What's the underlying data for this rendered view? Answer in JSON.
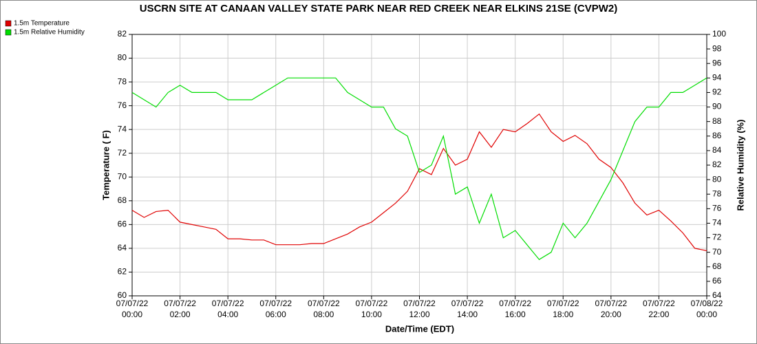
{
  "chart_data": {
    "type": "line",
    "title": "USCRN SITE AT CANAAN VALLEY STATE PARK NEAR RED CREEK NEAR ELKINS 21SE (CVPW2)",
    "x_label": "Date/Time (EDT)",
    "y_label": "Temperature ( F)",
    "y2_label": "Relative Humidity (%)",
    "x": [
      "07/07/22 00:00",
      "07/07/22 00:30",
      "07/07/22 01:00",
      "07/07/22 01:30",
      "07/07/22 02:00",
      "07/07/22 02:30",
      "07/07/22 03:00",
      "07/07/22 03:30",
      "07/07/22 04:00",
      "07/07/22 04:30",
      "07/07/22 05:00",
      "07/07/22 05:30",
      "07/07/22 06:00",
      "07/07/22 06:30",
      "07/07/22 07:00",
      "07/07/22 07:30",
      "07/07/22 08:00",
      "07/07/22 08:30",
      "07/07/22 09:00",
      "07/07/22 09:30",
      "07/07/22 10:00",
      "07/07/22 10:30",
      "07/07/22 11:00",
      "07/07/22 11:30",
      "07/07/22 12:00",
      "07/07/22 12:30",
      "07/07/22 13:00",
      "07/07/22 13:30",
      "07/07/22 14:00",
      "07/07/22 14:30",
      "07/07/22 15:00",
      "07/07/22 15:30",
      "07/07/22 16:00",
      "07/07/22 16:30",
      "07/07/22 17:00",
      "07/07/22 17:30",
      "07/07/22 18:00",
      "07/07/22 18:30",
      "07/07/22 19:00",
      "07/07/22 19:30",
      "07/07/22 20:00",
      "07/07/22 20:30",
      "07/07/22 21:00",
      "07/07/22 21:30",
      "07/07/22 22:00",
      "07/07/22 22:30",
      "07/07/22 23:00",
      "07/07/22 23:30",
      "07/08/22 00:00"
    ],
    "xlim": [
      "07/07/22 00:00",
      "07/08/22 00:00"
    ],
    "xticks": [
      {
        "date": "07/07/22",
        "time": "00:00"
      },
      {
        "date": "07/07/22",
        "time": "02:00"
      },
      {
        "date": "07/07/22",
        "time": "04:00"
      },
      {
        "date": "07/07/22",
        "time": "06:00"
      },
      {
        "date": "07/07/22",
        "time": "08:00"
      },
      {
        "date": "07/07/22",
        "time": "10:00"
      },
      {
        "date": "07/07/22",
        "time": "12:00"
      },
      {
        "date": "07/07/22",
        "time": "14:00"
      },
      {
        "date": "07/07/22",
        "time": "16:00"
      },
      {
        "date": "07/07/22",
        "time": "18:00"
      },
      {
        "date": "07/07/22",
        "time": "20:00"
      },
      {
        "date": "07/07/22",
        "time": "22:00"
      },
      {
        "date": "07/08/22",
        "time": "00:00"
      }
    ],
    "ylim": [
      60,
      82
    ],
    "yticks": [
      60,
      62,
      64,
      66,
      68,
      70,
      72,
      74,
      76,
      78,
      80,
      82
    ],
    "y2lim": [
      64,
      100
    ],
    "y2ticks": [
      64,
      66,
      68,
      70,
      72,
      74,
      76,
      78,
      80,
      82,
      84,
      86,
      88,
      90,
      92,
      94,
      96,
      98,
      100
    ],
    "grid": true,
    "legend": "top-left",
    "series": [
      {
        "name": "1.5m Temperature",
        "color": "#e00000",
        "values": [
          67.2,
          66.6,
          67.1,
          67.2,
          66.2,
          66.0,
          65.8,
          65.6,
          64.8,
          64.8,
          64.7,
          64.7,
          64.3,
          64.3,
          64.3,
          64.4,
          64.4,
          64.8,
          65.2,
          65.8,
          66.2,
          67.0,
          67.8,
          68.8,
          70.7,
          70.2,
          72.4,
          71.0,
          71.5,
          73.8,
          72.5,
          74.0,
          73.8,
          74.5,
          75.3,
          73.8,
          73.0,
          73.5,
          72.8,
          71.5,
          70.8,
          69.5,
          67.8,
          66.8,
          67.2,
          66.3,
          65.3,
          64.0,
          63.8
        ]
      },
      {
        "name": "1.5m Relative Humidity",
        "color": "#00dd00",
        "axis": "y2",
        "values": [
          92,
          91,
          90,
          92,
          93,
          92,
          92,
          92,
          91,
          91,
          91,
          92,
          93,
          94,
          94,
          94,
          94,
          94,
          92,
          91,
          90,
          90,
          87,
          86,
          81,
          82,
          86,
          78,
          79,
          74,
          78,
          72,
          73,
          71,
          69,
          70,
          74,
          72,
          74,
          77,
          80,
          84,
          88,
          90,
          90,
          92,
          92,
          93,
          94
        ]
      }
    ]
  }
}
